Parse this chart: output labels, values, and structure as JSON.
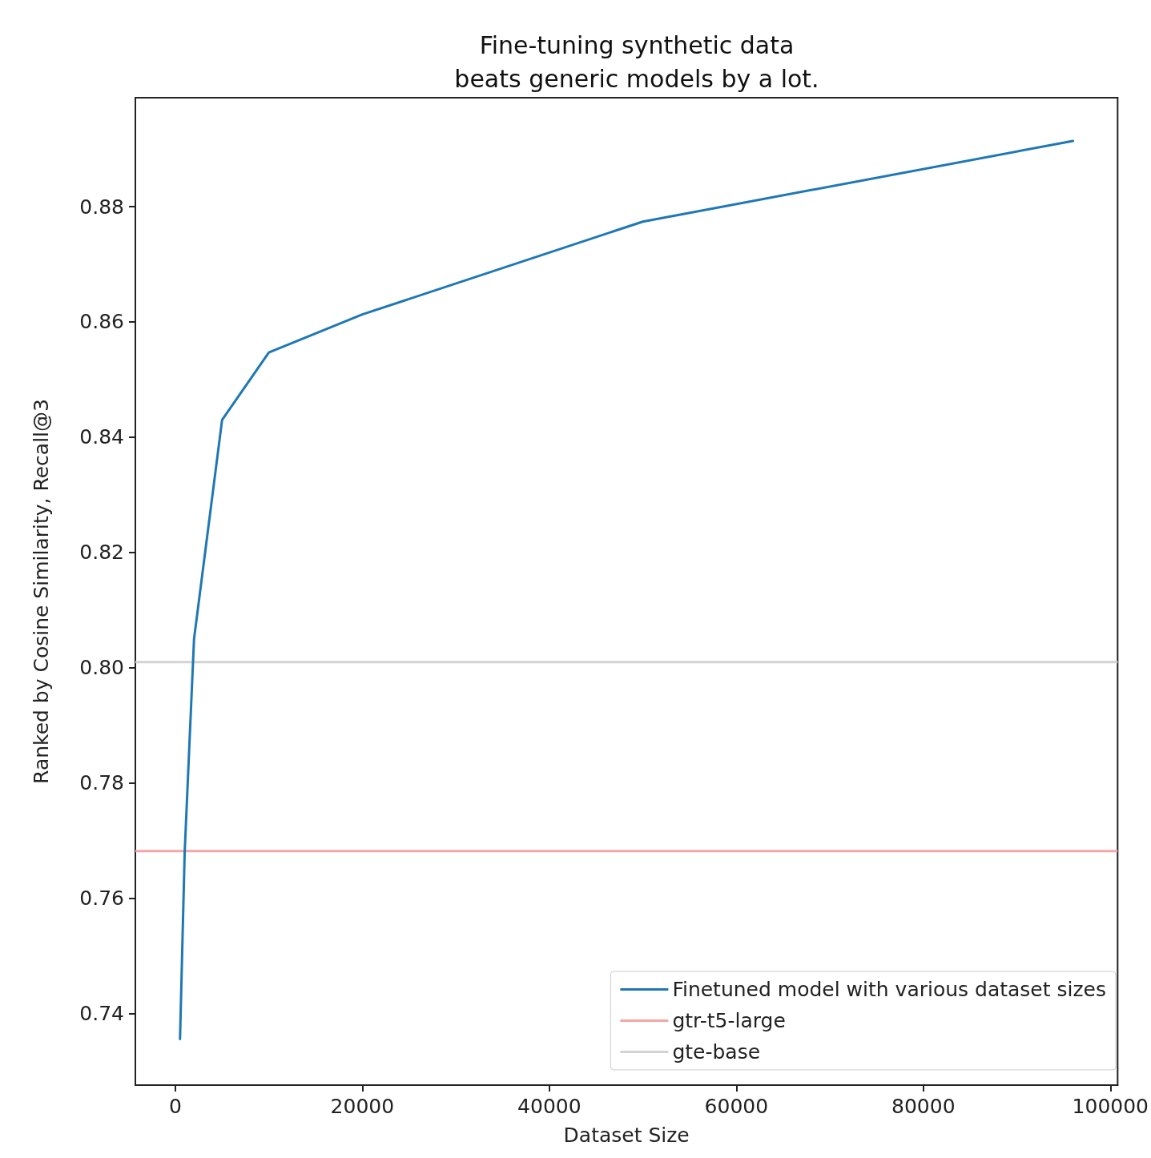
{
  "chart_data": {
    "type": "line",
    "title": "Fine-tuning synthetic data\nbeats generic models by a lot.",
    "xlabel": "Dataset Size",
    "ylabel": "Ranked by Cosine Similarity, Recall@3",
    "x": [
      500,
      1000,
      2000,
      5000,
      10000,
      20000,
      50000,
      96000
    ],
    "series": [
      {
        "name": "Finetuned model with various dataset sizes",
        "color": "#1f77b4",
        "values": [
          0.7356,
          0.768,
          0.805,
          0.843,
          0.8547,
          0.8613,
          0.8774,
          0.8914
        ]
      }
    ],
    "ref_lines": [
      {
        "axis": "y",
        "value": 0.7682,
        "label": "gtr-t5-large",
        "color": "#f4a6a6"
      },
      {
        "axis": "y",
        "value": 0.801,
        "label": "gte-base",
        "color": "#d3d3d3"
      }
    ],
    "xlim": [
      -4275,
      100775
    ],
    "xticks": [
      0,
      20000,
      40000,
      60000,
      80000,
      100000
    ],
    "ylim": [
      0.7276,
      0.8989
    ],
    "yticks": [
      0.74,
      0.76,
      0.78,
      {
        "value": 0.8,
        "label": "0.80"
      },
      0.82,
      0.84,
      0.86,
      0.88
    ],
    "grid": false,
    "legend": "bottom right",
    "marker": "none",
    "line_style": "solid"
  }
}
